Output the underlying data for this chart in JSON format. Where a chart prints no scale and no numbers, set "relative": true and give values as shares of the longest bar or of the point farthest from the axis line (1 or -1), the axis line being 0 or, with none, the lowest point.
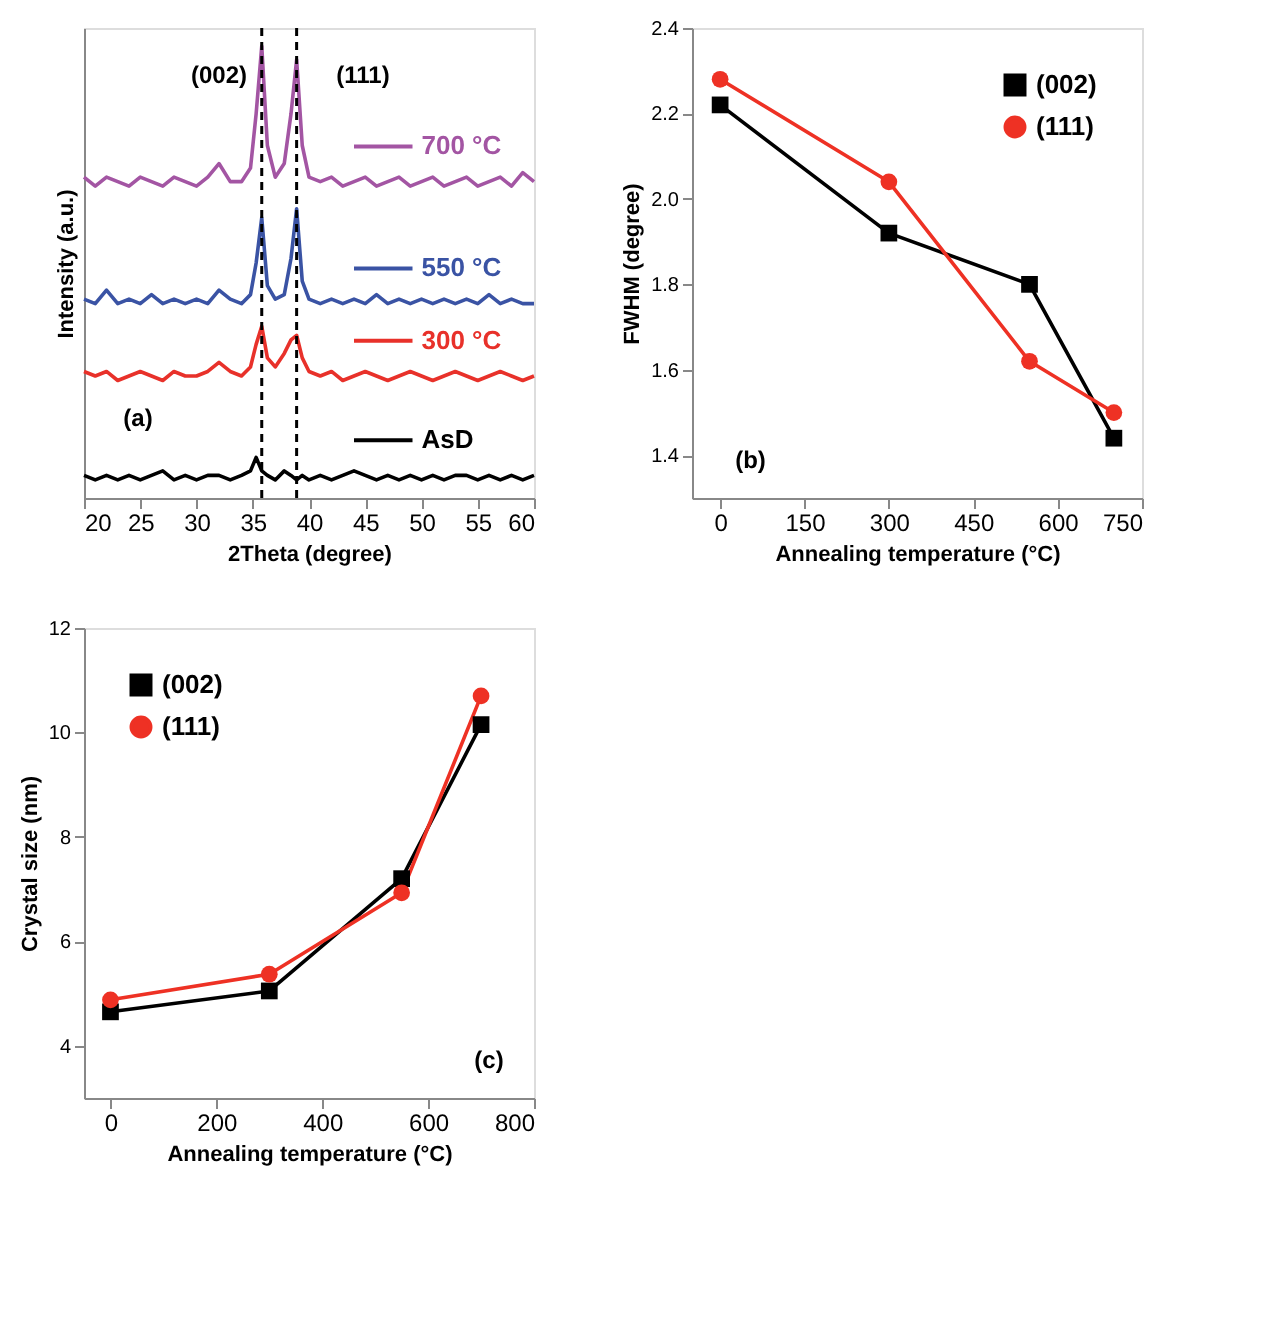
{
  "chart_data": [
    {
      "type": "line",
      "xlabel": "2Theta (degree)",
      "ylabel": "Intensity (a.u.)",
      "relative": true,
      "tick_labels": "x",
      "xlim": [
        20,
        60
      ],
      "xticks": [
        20,
        25,
        30,
        35,
        40,
        45,
        50,
        55,
        60
      ],
      "x": [
        20,
        21,
        22,
        23,
        24,
        25,
        26,
        27,
        28,
        29,
        30,
        31,
        32,
        33,
        34,
        34.8,
        35.3,
        35.8,
        36.3,
        37,
        37.8,
        38.4,
        38.9,
        39.4,
        40,
        41,
        42,
        43,
        44,
        45,
        46,
        47,
        48,
        49,
        50,
        51,
        52,
        53,
        54,
        55,
        56,
        57,
        58,
        59,
        60
      ],
      "series": [
        {
          "name": "AsD",
          "color": "#000000",
          "values": [
            0.05,
            0.04,
            0.05,
            0.04,
            0.05,
            0.04,
            0.05,
            0.06,
            0.04,
            0.05,
            0.04,
            0.05,
            0.05,
            0.04,
            0.05,
            0.06,
            0.09,
            0.06,
            0.05,
            0.04,
            0.06,
            0.05,
            0.04,
            0.05,
            0.04,
            0.05,
            0.04,
            0.05,
            0.06,
            0.05,
            0.04,
            0.05,
            0.04,
            0.05,
            0.04,
            0.05,
            0.04,
            0.05,
            0.05,
            0.04,
            0.05,
            0.04,
            0.05,
            0.04,
            0.05
          ]
        },
        {
          "name": "300 °C",
          "color": "#e8312a",
          "values": [
            0.28,
            0.27,
            0.28,
            0.26,
            0.27,
            0.28,
            0.27,
            0.26,
            0.28,
            0.27,
            0.27,
            0.28,
            0.3,
            0.28,
            0.27,
            0.29,
            0.34,
            0.38,
            0.31,
            0.29,
            0.32,
            0.35,
            0.36,
            0.31,
            0.28,
            0.27,
            0.28,
            0.26,
            0.27,
            0.28,
            0.27,
            0.26,
            0.27,
            0.28,
            0.27,
            0.26,
            0.27,
            0.28,
            0.27,
            0.26,
            0.27,
            0.28,
            0.27,
            0.26,
            0.27
          ]
        },
        {
          "name": "550 °C",
          "color": "#3a53a4",
          "values": [
            0.44,
            0.43,
            0.46,
            0.43,
            0.44,
            0.43,
            0.45,
            0.43,
            0.44,
            0.43,
            0.44,
            0.43,
            0.46,
            0.44,
            0.43,
            0.45,
            0.52,
            0.62,
            0.47,
            0.44,
            0.45,
            0.53,
            0.64,
            0.48,
            0.44,
            0.43,
            0.44,
            0.43,
            0.44,
            0.43,
            0.45,
            0.43,
            0.44,
            0.43,
            0.44,
            0.43,
            0.44,
            0.43,
            0.44,
            0.43,
            0.45,
            0.43,
            0.44,
            0.43,
            0.43
          ]
        },
        {
          "name": "700 °C",
          "color": "#a355a3",
          "values": [
            0.71,
            0.69,
            0.71,
            0.7,
            0.69,
            0.71,
            0.7,
            0.69,
            0.71,
            0.7,
            0.69,
            0.71,
            0.74,
            0.7,
            0.7,
            0.73,
            0.85,
            1.0,
            0.78,
            0.71,
            0.74,
            0.85,
            0.97,
            0.78,
            0.71,
            0.7,
            0.71,
            0.69,
            0.7,
            0.71,
            0.69,
            0.7,
            0.71,
            0.69,
            0.7,
            0.71,
            0.69,
            0.7,
            0.71,
            0.69,
            0.7,
            0.71,
            0.69,
            0.72,
            0.7
          ]
        }
      ],
      "ref_lines": [
        {
          "axis": "x",
          "value": 35.8,
          "line_style": "dashed",
          "color": "#000000"
        },
        {
          "axis": "x",
          "value": 38.9,
          "line_style": "dashed",
          "color": "#000000"
        }
      ],
      "annotations": [
        "(002)",
        "(111)",
        "(a)"
      ],
      "legend": "right"
    },
    {
      "type": "line",
      "xlabel": "Annealing temperature (°C)",
      "ylabel": "FWHM (degree)",
      "xlim": [
        -50,
        750
      ],
      "xticks": [
        0,
        150,
        300,
        450,
        600,
        750
      ],
      "ylim": [
        1.3,
        2.4
      ],
      "yticks": [
        1.4,
        1.6,
        1.8,
        {
          "value": 2.0,
          "label": "2.0"
        },
        2.2,
        2.4
      ],
      "x": [
        0,
        300,
        550,
        700
      ],
      "legend": "top right",
      "series": [
        {
          "name": "(002)",
          "color": "#000000",
          "marker": "square",
          "values": [
            2.22,
            1.92,
            1.8,
            1.44
          ]
        },
        {
          "name": "(111)",
          "color": "#ee3124",
          "marker": "circle",
          "values": [
            2.28,
            2.04,
            1.62,
            1.5
          ]
        }
      ],
      "annotations": [
        "(b)"
      ]
    },
    {
      "type": "line",
      "xlabel": "Annealing temperature (°C)",
      "ylabel": "Crystal size (nm)",
      "xlim": [
        -50,
        800
      ],
      "xticks": [
        0,
        200,
        400,
        600,
        800
      ],
      "ylim": [
        3,
        12
      ],
      "yticks": [
        4,
        6,
        8,
        10,
        12
      ],
      "x": [
        0,
        300,
        550,
        700
      ],
      "legend": "top left",
      "series": [
        {
          "name": "(002)",
          "color": "#000000",
          "marker": "square",
          "values": [
            4.65,
            5.05,
            7.2,
            10.15
          ]
        },
        {
          "name": "(111)",
          "color": "#ee3124",
          "marker": "circle",
          "values": [
            4.88,
            5.37,
            6.93,
            10.7
          ]
        }
      ],
      "annotations": [
        "(c)"
      ]
    }
  ]
}
